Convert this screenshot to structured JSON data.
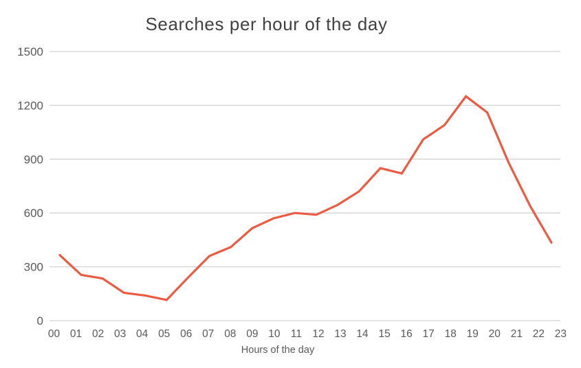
{
  "chart_data": {
    "type": "line",
    "title": "Searches per hour of the day",
    "xlabel": "Hours of the day",
    "ylabel": "",
    "categories": [
      "00",
      "01",
      "02",
      "03",
      "04",
      "05",
      "06",
      "07",
      "08",
      "09",
      "10",
      "11",
      "12",
      "13",
      "14",
      "15",
      "16",
      "17",
      "18",
      "19",
      "20",
      "21",
      "22",
      "23"
    ],
    "values": [
      365,
      255,
      235,
      155,
      140,
      115,
      240,
      360,
      410,
      515,
      570,
      600,
      590,
      645,
      720,
      850,
      820,
      1010,
      1090,
      1250,
      1160,
      880,
      640,
      435
    ],
    "ylim": [
      0,
      1500
    ],
    "yticks": [
      0,
      300,
      600,
      900,
      1200,
      1500
    ],
    "grid": "horizontal",
    "legend": "none",
    "colors": {
      "line": "#EB5A41",
      "title_text": "#414042",
      "tick_text": "#58595B",
      "gridline": "#D2D2D2",
      "background": "#FFFFFF"
    }
  }
}
